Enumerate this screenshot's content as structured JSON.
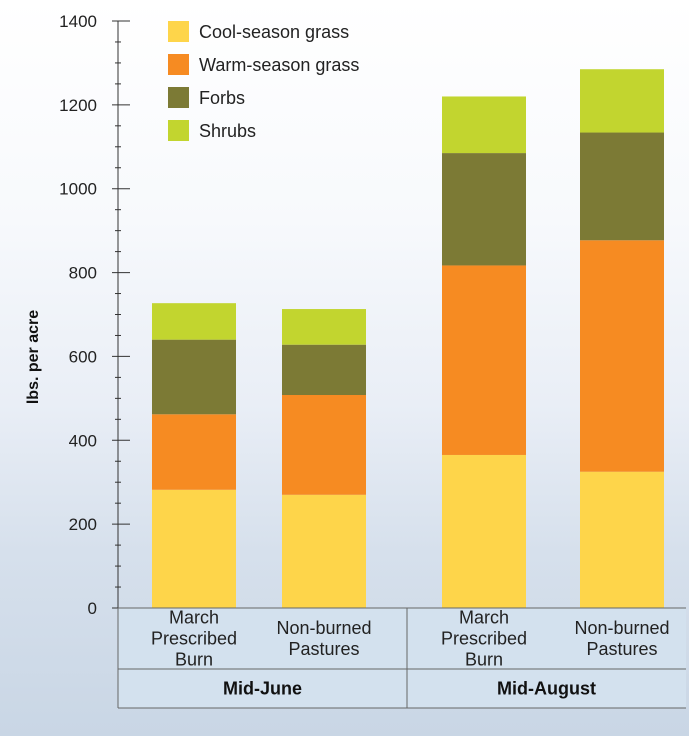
{
  "chart_data": {
    "type": "bar",
    "stacked": true,
    "ylabel": "lbs. per acre",
    "ylim": [
      0,
      1400
    ],
    "yticks": [
      0,
      200,
      400,
      600,
      800,
      1000,
      1200,
      1400
    ],
    "legend_position": "top-left",
    "grid": false,
    "categories": [
      "March Prescribed Burn",
      "Non-burned Pastures",
      "March Prescribed Burn",
      "Non-burned Pastures"
    ],
    "category_lines": [
      [
        "March",
        "Prescribed",
        "Burn"
      ],
      [
        "Non-burned",
        "Pastures"
      ],
      [
        "March",
        "Prescribed",
        "Burn"
      ],
      [
        "Non-burned",
        "Pastures"
      ]
    ],
    "groups": [
      {
        "label": "Mid-June",
        "categories": [
          0,
          1
        ]
      },
      {
        "label": "Mid-August",
        "categories": [
          2,
          3
        ]
      }
    ],
    "series": [
      {
        "name": "Cool-season grass",
        "color": "#fed54a",
        "values": [
          282,
          270,
          365,
          325
        ]
      },
      {
        "name": "Warm-season grass",
        "color": "#f68b22",
        "values": [
          180,
          238,
          452,
          552
        ]
      },
      {
        "name": "Forbs",
        "color": "#7c7a35",
        "values": [
          178,
          120,
          268,
          257
        ]
      },
      {
        "name": "Shrubs",
        "color": "#c2d52f",
        "values": [
          87,
          85,
          135,
          151
        ]
      }
    ]
  }
}
